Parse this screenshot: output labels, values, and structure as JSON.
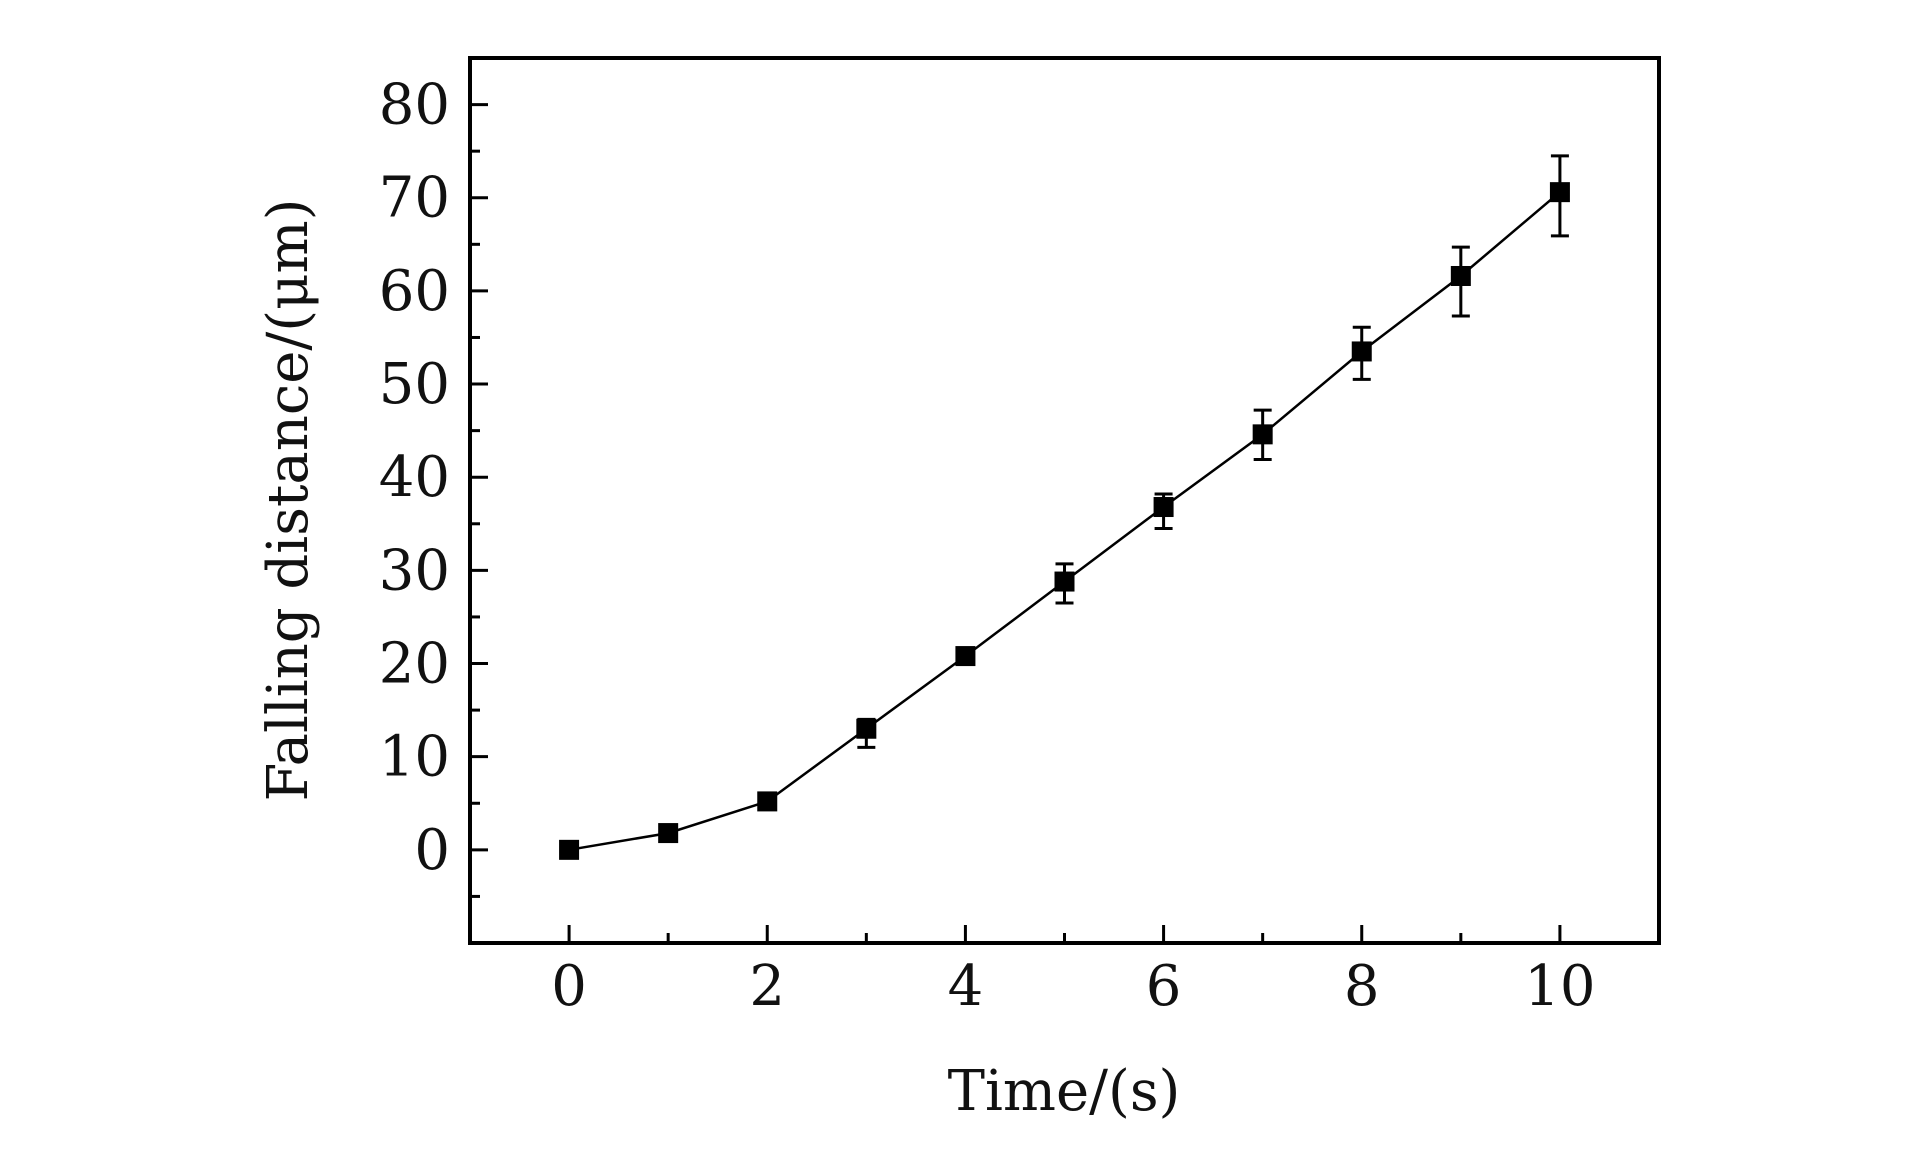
{
  "chart_data": {
    "type": "scatter",
    "xlabel": "Time/(s)",
    "ylabel": "Falling distance/(μm)",
    "xlim": [
      -1,
      11
    ],
    "ylim": [
      -10,
      85
    ],
    "x_ticks": [
      "0",
      "2",
      "4",
      "6",
      "8",
      "10"
    ],
    "x_tick_values": [
      0,
      2,
      4,
      6,
      8,
      10
    ],
    "x_minor_ticks": [
      1,
      3,
      5,
      7,
      9
    ],
    "y_ticks": [
      "0",
      "10",
      "20",
      "30",
      "40",
      "50",
      "60",
      "70",
      "80"
    ],
    "y_tick_values": [
      0,
      10,
      20,
      30,
      40,
      50,
      60,
      70,
      80
    ],
    "y_minor_ticks": [
      -5,
      5,
      15,
      25,
      35,
      45,
      55,
      65,
      75
    ],
    "grid": false,
    "legend": "none",
    "marker": "square",
    "connected_line": true,
    "color": "#000000",
    "series": [
      {
        "x": [
          0,
          1,
          2,
          3,
          4,
          5,
          6,
          7,
          8,
          9,
          10
        ],
        "y": [
          0,
          1.8,
          5.2,
          13.0,
          20.8,
          28.8,
          36.8,
          44.6,
          53.5,
          61.6,
          70.6
        ],
        "y_err_low": [
          0,
          0,
          0,
          2.0,
          0.8,
          2.3,
          2.3,
          2.7,
          3.0,
          4.3,
          4.7
        ],
        "y_err_high": [
          0,
          0,
          0,
          1.0,
          0.6,
          1.9,
          1.4,
          2.6,
          2.6,
          3.1,
          3.9
        ]
      }
    ]
  }
}
